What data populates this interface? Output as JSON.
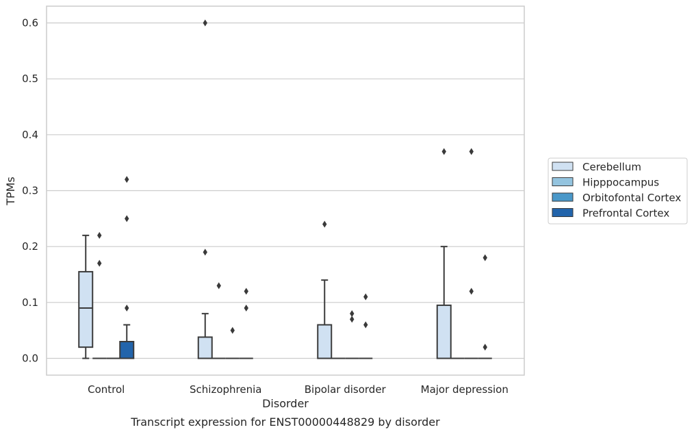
{
  "chart_data": {
    "type": "box",
    "caption": "Transcript expression for ENST00000448829 by disorder",
    "xlabel": "Disorder",
    "ylabel": "TPMs",
    "ylim": [
      -0.03,
      0.63
    ],
    "yticks": [
      0.0,
      0.1,
      0.2,
      0.3,
      0.4,
      0.5,
      0.6
    ],
    "ytick_labels": [
      "0.0",
      "0.1",
      "0.2",
      "0.3",
      "0.4",
      "0.5",
      "0.6"
    ],
    "grid": "horizontal",
    "legend_position": "right",
    "categories": [
      "Control",
      "Schizophrenia",
      "Bipolar disorder",
      "Major depression"
    ],
    "series": [
      {
        "name": "Cerebellum",
        "color": "#d0e1f2",
        "boxes": [
          {
            "q1": 0.02,
            "median": 0.09,
            "q3": 0.155,
            "whisker_low": 0.0,
            "whisker_high": 0.22,
            "outliers": []
          },
          {
            "q1": 0.0,
            "median": 0.0,
            "q3": 0.038,
            "whisker_low": 0.0,
            "whisker_high": 0.08,
            "outliers": [
              0.19,
              0.6
            ]
          },
          {
            "q1": 0.0,
            "median": 0.0,
            "q3": 0.06,
            "whisker_low": 0.0,
            "whisker_high": 0.14,
            "outliers": [
              0.24
            ]
          },
          {
            "q1": 0.0,
            "median": 0.0,
            "q3": 0.095,
            "whisker_low": 0.0,
            "whisker_high": 0.2,
            "outliers": [
              0.37
            ]
          }
        ]
      },
      {
        "name": "Hipppocampus",
        "color": "#94c4df",
        "boxes": [
          {
            "q1": 0.0,
            "median": 0.0,
            "q3": 0.0,
            "whisker_low": 0.0,
            "whisker_high": 0.0,
            "outliers": [
              0.17,
              0.22
            ]
          },
          {
            "q1": 0.0,
            "median": 0.0,
            "q3": 0.0,
            "whisker_low": 0.0,
            "whisker_high": 0.0,
            "outliers": [
              0.13
            ]
          },
          {
            "q1": 0.0,
            "median": 0.0,
            "q3": 0.0,
            "whisker_low": 0.0,
            "whisker_high": 0.0,
            "outliers": []
          },
          {
            "q1": 0.0,
            "median": 0.0,
            "q3": 0.0,
            "whisker_low": 0.0,
            "whisker_high": 0.0,
            "outliers": []
          }
        ]
      },
      {
        "name": "Orbitofontal Cortex",
        "color": "#4a98c9",
        "boxes": [
          {
            "q1": 0.0,
            "median": 0.0,
            "q3": 0.0,
            "whisker_low": 0.0,
            "whisker_high": 0.0,
            "outliers": []
          },
          {
            "q1": 0.0,
            "median": 0.0,
            "q3": 0.0,
            "whisker_low": 0.0,
            "whisker_high": 0.0,
            "outliers": [
              0.05
            ]
          },
          {
            "q1": 0.0,
            "median": 0.0,
            "q3": 0.0,
            "whisker_low": 0.0,
            "whisker_high": 0.0,
            "outliers": [
              0.07,
              0.08
            ]
          },
          {
            "q1": 0.0,
            "median": 0.0,
            "q3": 0.0,
            "whisker_low": 0.0,
            "whisker_high": 0.0,
            "outliers": [
              0.12,
              0.37
            ]
          }
        ]
      },
      {
        "name": "Prefrontal Cortex",
        "color": "#2264ab",
        "boxes": [
          {
            "q1": 0.0,
            "median": 0.0,
            "q3": 0.03,
            "whisker_low": 0.0,
            "whisker_high": 0.06,
            "outliers": [
              0.09,
              0.25,
              0.32
            ]
          },
          {
            "q1": 0.0,
            "median": 0.0,
            "q3": 0.0,
            "whisker_low": 0.0,
            "whisker_high": 0.0,
            "outliers": [
              0.09,
              0.12
            ]
          },
          {
            "q1": 0.0,
            "median": 0.0,
            "q3": 0.0,
            "whisker_low": 0.0,
            "whisker_high": 0.0,
            "outliers": [
              0.06,
              0.11
            ]
          },
          {
            "q1": 0.0,
            "median": 0.0,
            "q3": 0.0,
            "whisker_low": 0.0,
            "whisker_high": 0.0,
            "outliers": [
              0.02,
              0.18
            ]
          }
        ]
      }
    ]
  }
}
